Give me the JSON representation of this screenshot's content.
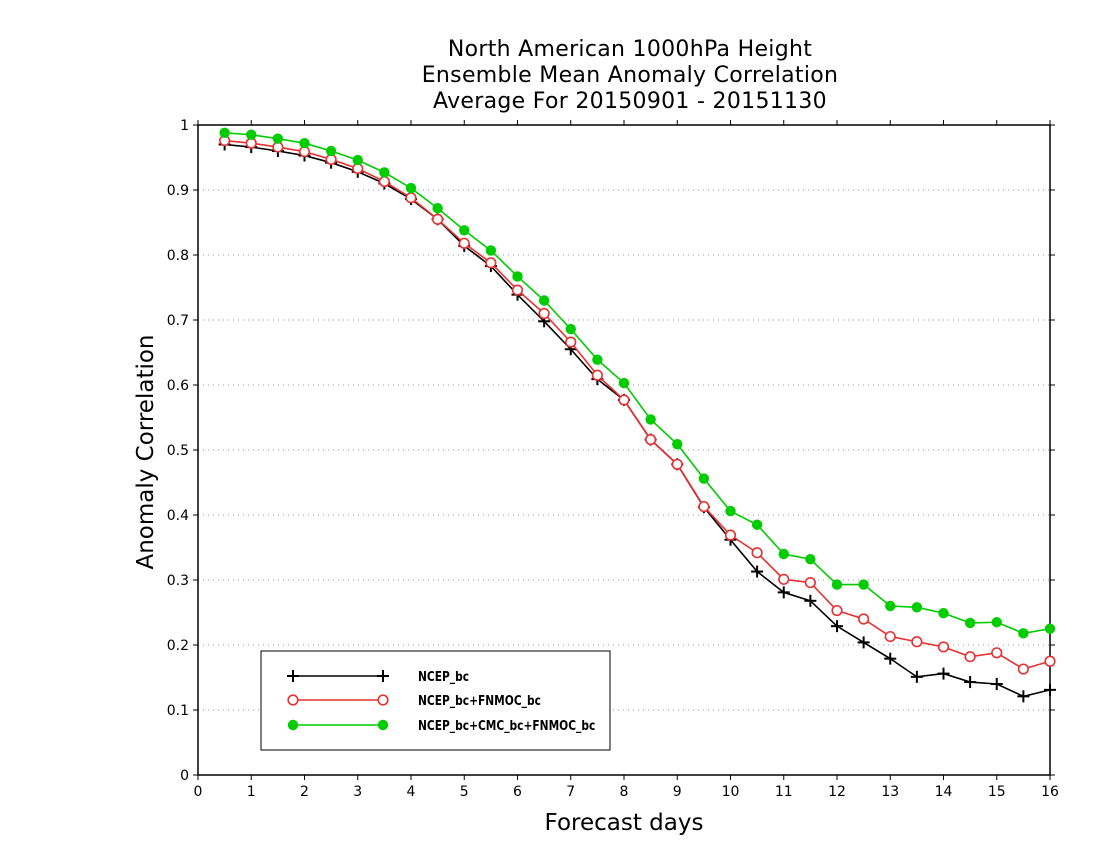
{
  "chart_data": {
    "type": "line",
    "title": [
      "North American 1000hPa Height",
      "Ensemble Mean Anomaly Correlation",
      "Average For 20150901 - 20151130"
    ],
    "xlabel": "Forecast days",
    "ylabel": "Anomaly Correlation",
    "xlim": [
      0,
      16
    ],
    "ylim": [
      0,
      1
    ],
    "xticks": [
      "0",
      "1",
      "2",
      "3",
      "4",
      "5",
      "6",
      "7",
      "8",
      "9",
      "10",
      "11",
      "12",
      "13",
      "14",
      "15",
      "16"
    ],
    "yticks": [
      "0",
      "0.1",
      "0.2",
      "0.3",
      "0.4",
      "0.5",
      "0.6",
      "0.7",
      "0.8",
      "0.9",
      "1"
    ],
    "grid": "horizontal dotted",
    "legend_position": "bottom-left",
    "x": [
      0.5,
      1,
      1.5,
      2,
      2.5,
      3,
      3.5,
      4,
      4.5,
      5,
      5.5,
      6,
      6.5,
      7,
      7.5,
      8,
      8.5,
      9,
      9.5,
      10,
      10.5,
      11,
      11.5,
      12,
      12.5,
      13,
      13.5,
      14,
      14.5,
      15,
      15.5,
      16
    ],
    "series": [
      {
        "name": "NCEP_bc",
        "color": "#000000",
        "marker": "plus",
        "values": [
          0.97,
          0.966,
          0.96,
          0.953,
          0.942,
          0.928,
          0.91,
          0.886,
          0.855,
          0.814,
          0.783,
          0.739,
          0.698,
          0.655,
          0.609,
          0.577,
          0.516,
          0.478,
          0.412,
          0.362,
          0.313,
          0.281,
          0.268,
          0.229,
          0.204,
          0.179,
          0.151,
          0.156,
          0.143,
          0.14,
          0.121,
          0.131
        ]
      },
      {
        "name": "NCEP_bc+FNMOC_bc",
        "color": "#e83030",
        "marker": "open-circle",
        "values": [
          0.976,
          0.972,
          0.966,
          0.959,
          0.947,
          0.933,
          0.913,
          0.888,
          0.855,
          0.818,
          0.788,
          0.746,
          0.71,
          0.666,
          0.615,
          0.577,
          0.516,
          0.478,
          0.413,
          0.369,
          0.342,
          0.301,
          0.296,
          0.253,
          0.24,
          0.213,
          0.205,
          0.197,
          0.182,
          0.188,
          0.163,
          0.175
        ]
      },
      {
        "name": "NCEP_bc+CMC_bc+FNMOC_bc",
        "color": "#00cc00",
        "marker": "filled-circle",
        "values": [
          0.988,
          0.985,
          0.979,
          0.972,
          0.96,
          0.946,
          0.927,
          0.903,
          0.872,
          0.838,
          0.807,
          0.767,
          0.73,
          0.686,
          0.639,
          0.603,
          0.547,
          0.509,
          0.456,
          0.406,
          0.385,
          0.34,
          0.332,
          0.293,
          0.293,
          0.26,
          0.258,
          0.249,
          0.234,
          0.235,
          0.218,
          0.225
        ]
      }
    ]
  }
}
